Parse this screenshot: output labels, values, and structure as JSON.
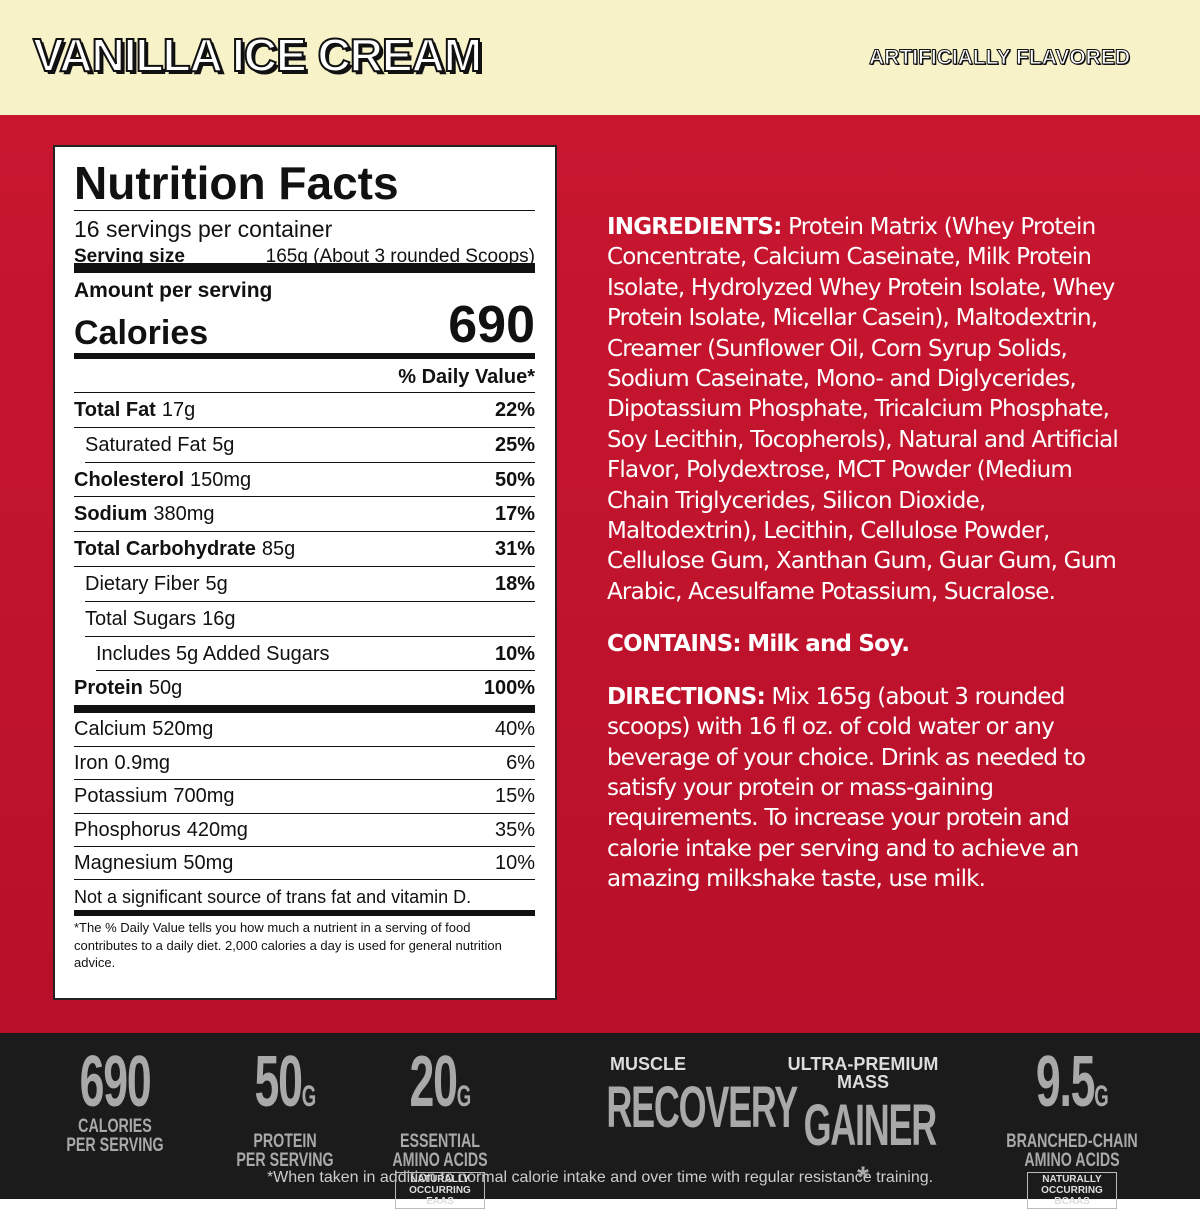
{
  "header": {
    "title": "VANILLA ICE CREAM",
    "flavor_note": "ARTIFICIALLY FLAVORED"
  },
  "nutrition": {
    "title": "Nutrition Facts",
    "servings": "16 servings per container",
    "serving_size_label": "Serving size",
    "serving_size": "165g (About 3 rounded Scoops)",
    "amount_label": "Amount per serving",
    "calories_label": "Calories",
    "calories": "690",
    "dv_header": "% Daily Value*",
    "rows": [
      {
        "name": "Total Fat",
        "amount": "17g",
        "dv": "22%"
      },
      {
        "name": "Saturated Fat",
        "amount": "5g",
        "dv": "25%"
      },
      {
        "name": "Cholesterol",
        "amount": "150mg",
        "dv": "50%"
      },
      {
        "name": "Sodium",
        "amount": "380mg",
        "dv": "17%"
      },
      {
        "name": "Total Carbohydrate",
        "amount": "85g",
        "dv": "31%"
      },
      {
        "name": "Dietary Fiber",
        "amount": "5g",
        "dv": "18%"
      },
      {
        "name": "Total Sugars",
        "amount": "16g"
      },
      {
        "name": "Includes 5g Added Sugars",
        "dv": "10%"
      },
      {
        "name": "Protein",
        "amount": "50g",
        "dv": "100%"
      }
    ],
    "minerals": [
      {
        "name": "Calcium",
        "amount": "520mg",
        "dv": "40%"
      },
      {
        "name": "Iron",
        "amount": "0.9mg",
        "dv": "6%"
      },
      {
        "name": "Potassium",
        "amount": "700mg",
        "dv": "15%"
      },
      {
        "name": "Phosphorus",
        "amount": "420mg",
        "dv": "35%"
      },
      {
        "name": "Magnesium",
        "amount": "50mg",
        "dv": "10%"
      }
    ],
    "note": "Not a significant source of trans fat and vitamin D.",
    "footnote": "*The % Daily Value tells you how much a nutrient in a serving of food contributes to a daily diet. 2,000 calories a day is used for general nutrition advice."
  },
  "ingredients": {
    "label": "INGREDIENTS:",
    "text": "Protein Matrix (Whey Protein Concentrate, Calcium Caseinate, Milk Protein Isolate, Hydrolyzed Whey Protein Isolate, Whey Protein Isolate, Micellar Casein), Maltodextrin, Creamer (Sunflower Oil, Corn Syrup Solids, Sodium Caseinate, Mono- and Diglycerides, Dipotassium Phosphate, Tricalcium Phosphate, Soy Lecithin, Tocopherols), Natural and Artificial Flavor, Polydextrose, MCT Powder (Medium Chain Triglycerides, Silicon Dioxide, Maltodextrin), Lecithin, Cellulose Powder, Cellulose Gum, Xanthan Gum, Guar Gum, Gum Arabic, Acesulfame Potassium, Sucralose."
  },
  "contains": {
    "label": "CONTAINS:",
    "text": "Milk and Soy."
  },
  "directions": {
    "label": "DIRECTIONS:",
    "text": "Mix 165g (about 3 rounded scoops) with 16 fl oz. of cold water or any beverage of your choice. Drink as needed to satisfy your protein or mass-gaining requirements. To increase your protein and calorie intake per serving and to achieve an amazing milkshake taste, use milk."
  },
  "badges": [
    {
      "big": "690",
      "lines": [
        "CALORIES",
        "PER SERVING"
      ]
    },
    {
      "big": "50",
      "unit": "G",
      "lines": [
        "PROTEIN",
        "PER SERVING"
      ]
    },
    {
      "big": "20",
      "unit": "G",
      "lines": [
        "ESSENTIAL",
        "AMINO ACIDS"
      ],
      "box": "NATURALLY OCCURRING EAAS"
    },
    {
      "top": "MUSCLE",
      "big": "RECOVERY"
    },
    {
      "top": "ULTRA-PREMIUM MASS",
      "big": "GAINER",
      "mark": "*"
    },
    {
      "big": "9.5",
      "unit": "G",
      "lines": [
        "BRANCHED-CHAIN",
        "AMINO ACIDS"
      ],
      "box": "NATURALLY OCCURRING BCAAS"
    }
  ],
  "disclaimer": "*When taken in addition to normal calorie intake and over time with regular resistance training."
}
